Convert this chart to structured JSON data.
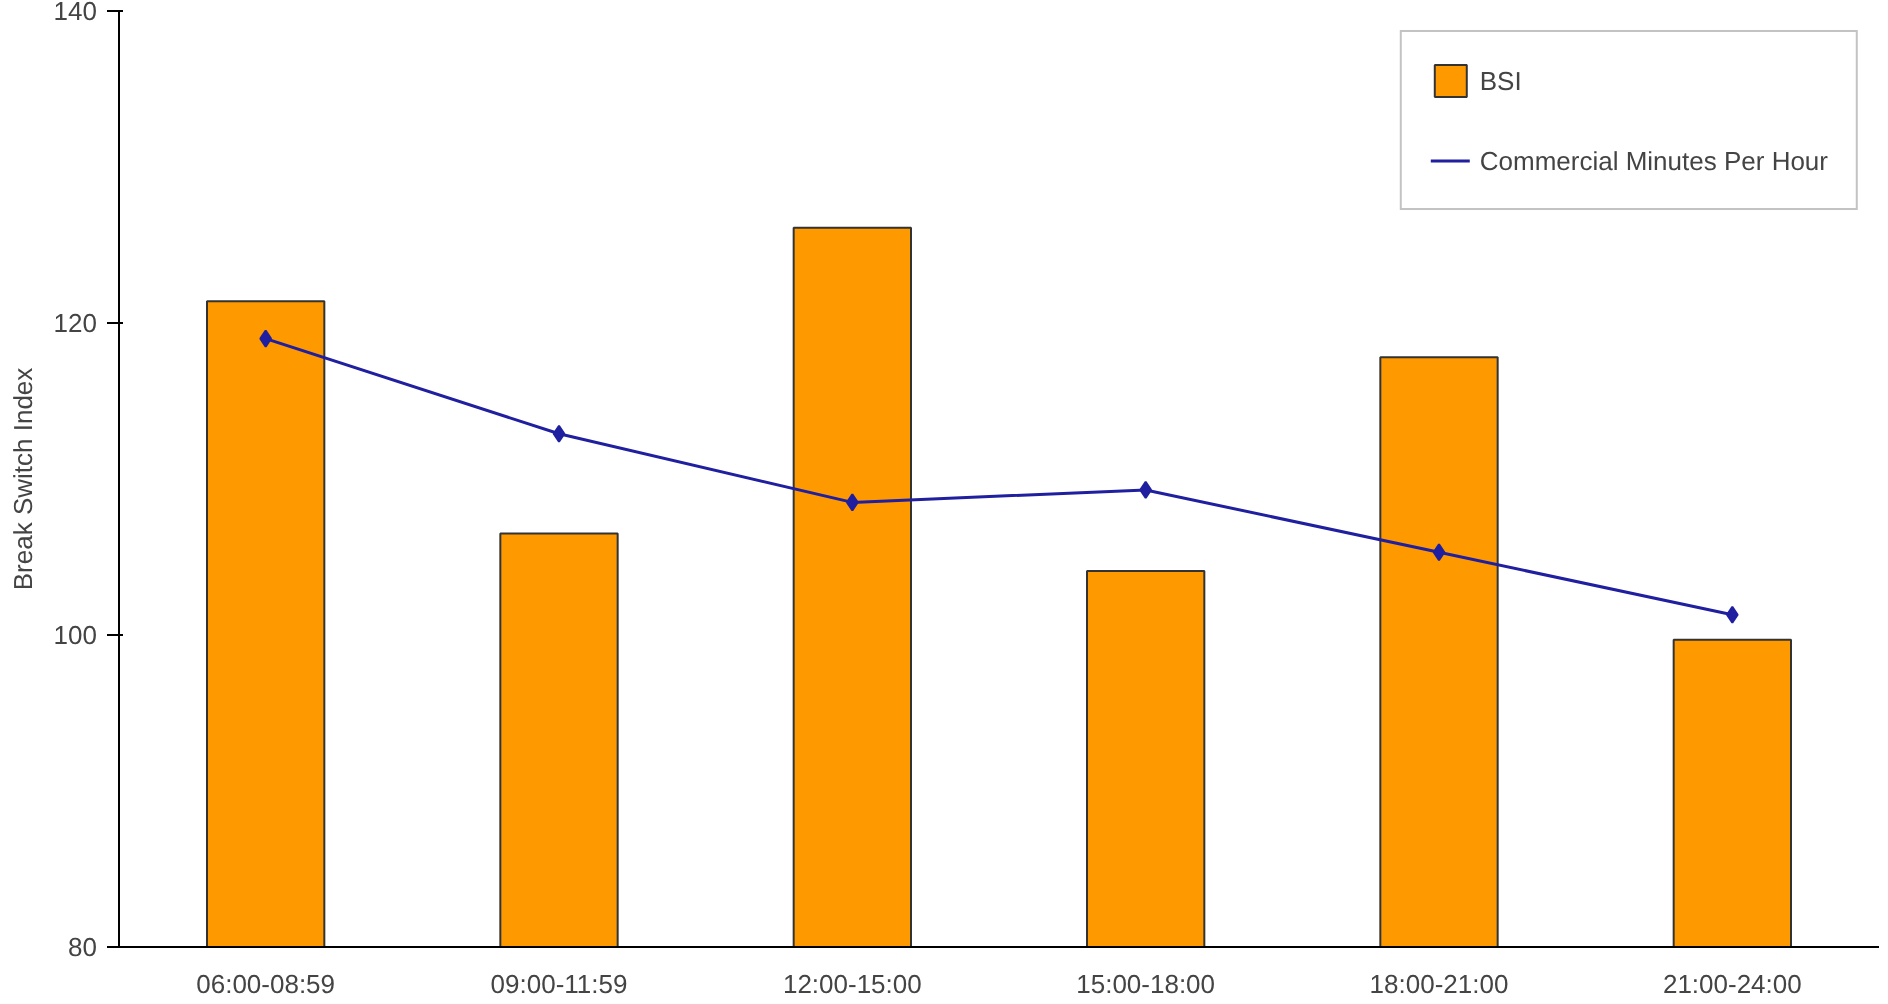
{
  "chart_data": {
    "type": "bar",
    "ylabel": "Break Switch Index",
    "categories": [
      "06:00-08:59",
      "09:00-11:59",
      "12:00-15:00",
      "15:00-18:00",
      "18:00-21:00",
      "21:00-24:00"
    ],
    "series": [
      {
        "name": "BSI",
        "color": "#ff9900",
        "values": [
          121.4,
          106.5,
          126.1,
          104.1,
          117.8,
          99.7
        ]
      },
      {
        "name": "Commercial Minutes Per Hour",
        "type": "line",
        "color": "#1f1fa0",
        "marker": "diamond",
        "values": [
          119.0,
          112.9,
          108.5,
          109.3,
          105.3,
          101.3
        ]
      }
    ],
    "ylim": [
      80,
      140
    ],
    "yticks": [
      80,
      100,
      120,
      140
    ],
    "grid": false,
    "legend": "top right"
  }
}
